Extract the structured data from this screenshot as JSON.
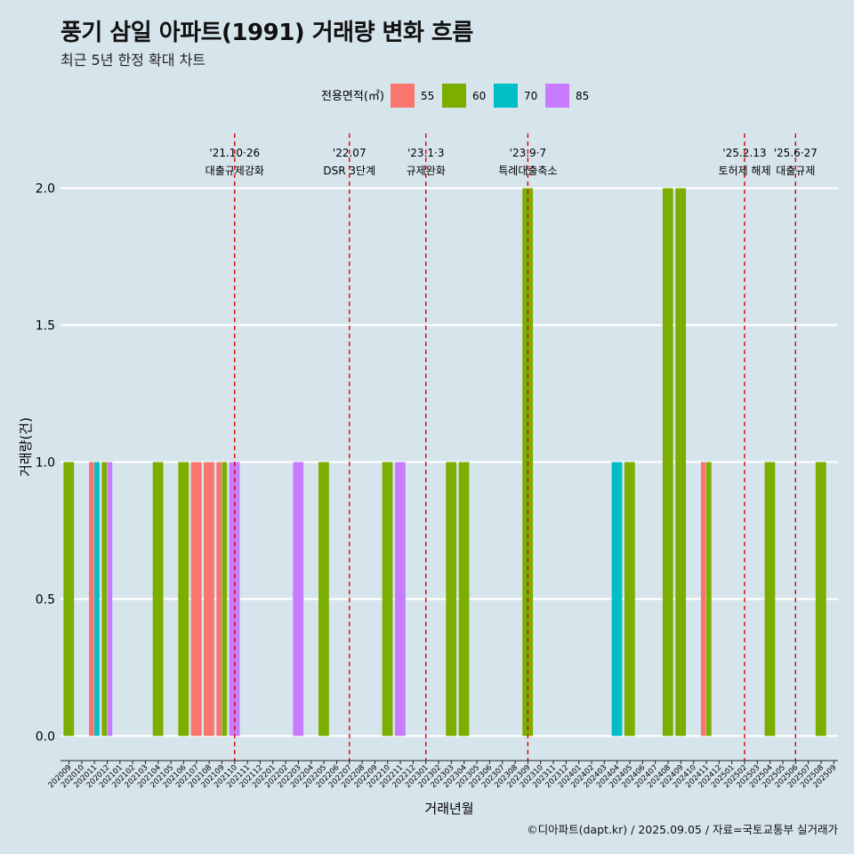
{
  "title": "풍기 삼일 아파트(1991) 거래량 변화 흐름",
  "subtitle": "최근 5년 한정 확대 차트",
  "caption": "©디아파트(dapt.kr) / 2025.09.05 / 자료=국토교통부 실거래가",
  "chart_data": {
    "type": "bar",
    "xlabel": "거래년월",
    "ylabel": "거래량(건)",
    "ylim": [
      -0.09,
      2.2
    ],
    "yticks": [
      0.0,
      0.5,
      1.0,
      1.5,
      2.0
    ],
    "ytick_labels": [
      "0.0",
      "0.5",
      "1.0",
      "1.5",
      "2.0"
    ],
    "legend": {
      "title": "전용면적(㎡)",
      "position": "top",
      "items": [
        {
          "name": "55",
          "color": "#f8766d"
        },
        {
          "name": "60",
          "color": "#7cae00"
        },
        {
          "name": "70",
          "color": "#00bfc4"
        },
        {
          "name": "85",
          "color": "#c77cff"
        }
      ]
    },
    "categories": [
      "202009",
      "202010",
      "202011",
      "202012",
      "202101",
      "202102",
      "202103",
      "202104",
      "202105",
      "202106",
      "202107",
      "202108",
      "202109",
      "202110",
      "202111",
      "202112",
      "202201",
      "202202",
      "202203",
      "202204",
      "202205",
      "202206",
      "202207",
      "202208",
      "202209",
      "202210",
      "202211",
      "202212",
      "202301",
      "202302",
      "202303",
      "202304",
      "202305",
      "202306",
      "202307",
      "202308",
      "202309",
      "202310",
      "202311",
      "202312",
      "202401",
      "202402",
      "202403",
      "202404",
      "202405",
      "202406",
      "202407",
      "202408",
      "202409",
      "202410",
      "202411",
      "202412",
      "202501",
      "202502",
      "202503",
      "202504",
      "202505",
      "202506",
      "202507",
      "202508",
      "202509"
    ],
    "bars": [
      {
        "x": "202009",
        "values": {
          "60": 1
        }
      },
      {
        "x": "202011",
        "values": {
          "55": 1,
          "70": 1
        }
      },
      {
        "x": "202012",
        "values": {
          "60": 1,
          "85": 1
        }
      },
      {
        "x": "202104",
        "values": {
          "60": 1
        }
      },
      {
        "x": "202106",
        "values": {
          "60": 1
        }
      },
      {
        "x": "202107",
        "values": {
          "55": 1
        }
      },
      {
        "x": "202108",
        "values": {
          "55": 1
        }
      },
      {
        "x": "202109",
        "values": {
          "55": 1,
          "60": 1
        }
      },
      {
        "x": "202110",
        "values": {
          "85": 1
        }
      },
      {
        "x": "202203",
        "values": {
          "85": 1
        }
      },
      {
        "x": "202205",
        "values": {
          "60": 1
        }
      },
      {
        "x": "202210",
        "values": {
          "60": 1
        }
      },
      {
        "x": "202211",
        "values": {
          "85": 1
        }
      },
      {
        "x": "202303",
        "values": {
          "60": 1
        }
      },
      {
        "x": "202304",
        "values": {
          "60": 1
        }
      },
      {
        "x": "202309",
        "values": {
          "60": 2
        }
      },
      {
        "x": "202404",
        "values": {
          "70": 1
        }
      },
      {
        "x": "202405",
        "values": {
          "60": 1
        }
      },
      {
        "x": "202408",
        "values": {
          "60": 2
        }
      },
      {
        "x": "202409",
        "values": {
          "60": 2
        }
      },
      {
        "x": "202411",
        "values": {
          "55": 1,
          "60": 1
        }
      },
      {
        "x": "202504",
        "values": {
          "60": 1
        }
      },
      {
        "x": "202508",
        "values": {
          "60": 1
        }
      }
    ],
    "annotations": [
      {
        "x": "202110",
        "line1": "'21.10·26",
        "line2": "대출규제강화"
      },
      {
        "x": "202207",
        "line1": "'22.07",
        "line2": "DSR 3단계"
      },
      {
        "x": "202301",
        "line1": "'23.1·3",
        "line2": "규제완화"
      },
      {
        "x": "202309",
        "line1": "'23.9·7",
        "line2": "특례대출축소"
      },
      {
        "x": "202502",
        "line1": "'25.2.13",
        "line2": "토허제 해제"
      },
      {
        "x": "202506",
        "line1": "'25.6·27",
        "line2": "대출규제"
      }
    ]
  }
}
